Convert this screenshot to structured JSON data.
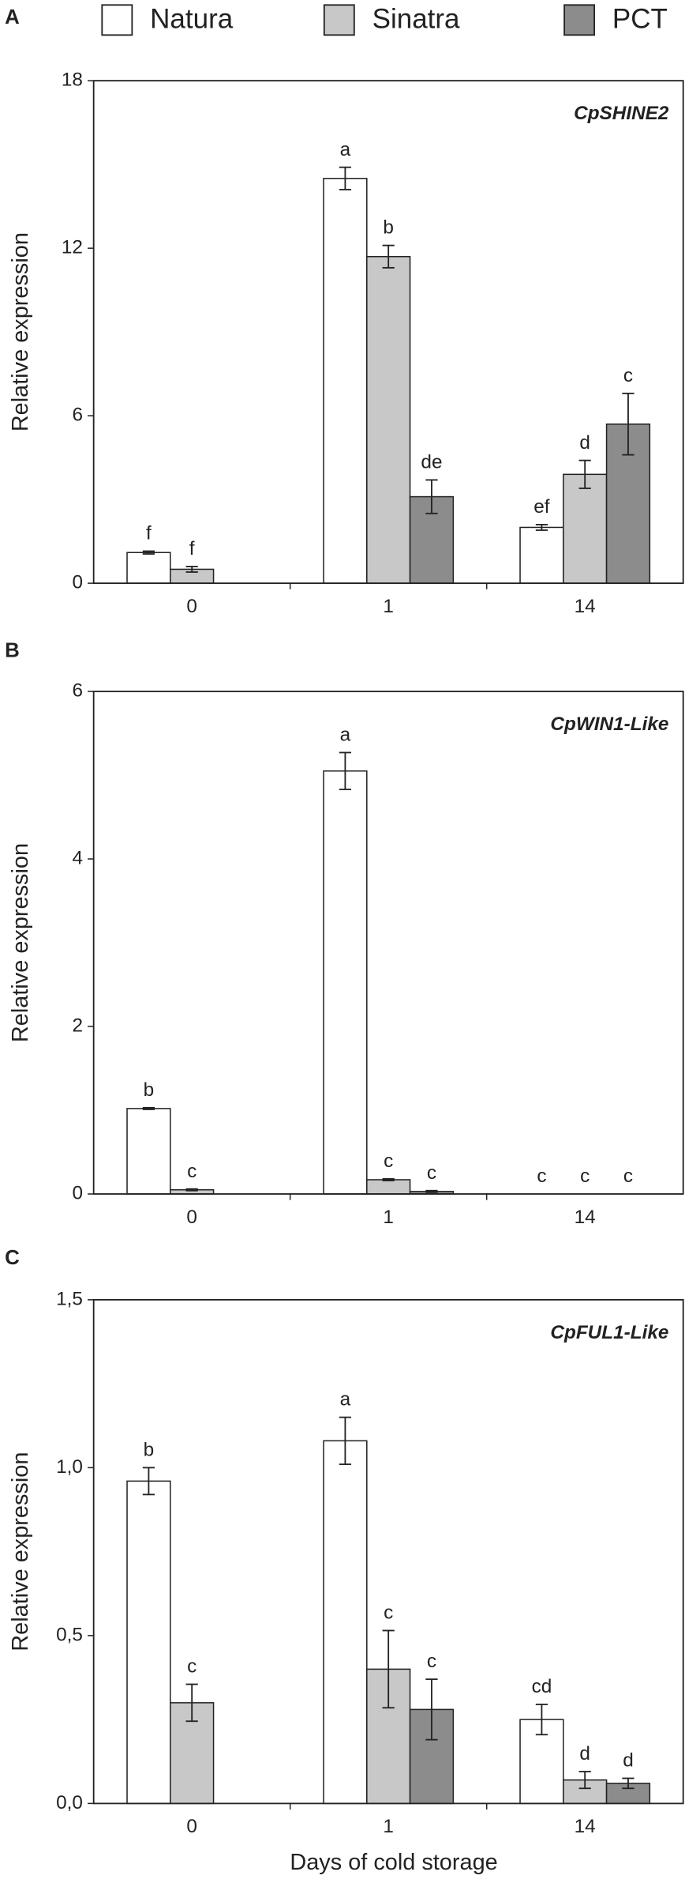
{
  "legend": [
    {
      "name": "Natura",
      "color": "#ffffff"
    },
    {
      "name": "Sinatra",
      "color": "#c8c8c8"
    },
    {
      "name": "PCT",
      "color": "#8c8c8c"
    }
  ],
  "x_label": "Days of cold storage",
  "chart_data": [
    {
      "type": "bar",
      "panel": "A",
      "gene": "CpSHINE2",
      "y_label": "Relative expression",
      "categories": [
        "0",
        "1",
        "14"
      ],
      "ylim": [
        0,
        18
      ],
      "yticks": [
        0,
        6,
        12,
        18
      ],
      "series": [
        {
          "values": [
            1.1,
            14.5,
            2.0
          ],
          "errors": [
            0.05,
            0.4,
            0.1
          ],
          "letters": [
            "f",
            "a",
            "ef"
          ]
        },
        {
          "values": [
            0.5,
            11.7,
            3.9
          ],
          "errors": [
            0.1,
            0.4,
            0.5
          ],
          "letters": [
            "f",
            "b",
            "d"
          ]
        },
        {
          "values": [
            null,
            3.1,
            5.7
          ],
          "errors": [
            null,
            0.6,
            1.1
          ],
          "letters": [
            null,
            "de",
            "c"
          ]
        }
      ]
    },
    {
      "type": "bar",
      "panel": "B",
      "gene": "CpWIN1-Like",
      "y_label": "Relative expression",
      "categories": [
        "0",
        "1",
        "14"
      ],
      "ylim": [
        0,
        6
      ],
      "yticks": [
        0,
        2,
        4,
        6
      ],
      "series": [
        {
          "values": [
            1.02,
            5.05,
            0
          ],
          "errors": [
            0.01,
            0.22,
            0
          ],
          "letters": [
            "b",
            "a",
            "c"
          ]
        },
        {
          "values": [
            0.05,
            0.17,
            0
          ],
          "errors": [
            0.01,
            0.01,
            0
          ],
          "letters": [
            "c",
            "c",
            "c"
          ]
        },
        {
          "values": [
            null,
            0.03,
            0
          ],
          "errors": [
            null,
            0.01,
            0
          ],
          "letters": [
            null,
            "c",
            "c"
          ]
        }
      ]
    },
    {
      "type": "bar",
      "panel": "C",
      "gene": "CpFUL1-Like",
      "y_label": "Relative expression",
      "categories": [
        "0",
        "1",
        "14"
      ],
      "ylim": [
        0,
        1.5
      ],
      "yticks": [
        {
          "value": 0,
          "label": "0,0"
        },
        {
          "value": 0.5,
          "label": "0,5"
        },
        {
          "value": 1.0,
          "label": "1,0"
        },
        {
          "value": 1.5,
          "label": "1,5"
        }
      ],
      "series": [
        {
          "values": [
            0.96,
            1.08,
            0.25
          ],
          "errors": [
            0.04,
            0.07,
            0.045
          ],
          "letters": [
            "b",
            "a",
            "cd"
          ]
        },
        {
          "values": [
            0.3,
            0.4,
            0.07
          ],
          "errors": [
            0.055,
            0.115,
            0.025
          ],
          "letters": [
            "c",
            "c",
            "d"
          ]
        },
        {
          "values": [
            null,
            0.28,
            0.06
          ],
          "errors": [
            null,
            0.09,
            0.015
          ],
          "letters": [
            null,
            "c",
            "d"
          ]
        }
      ]
    }
  ]
}
